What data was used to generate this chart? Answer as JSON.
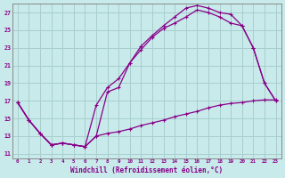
{
  "xlabel": "Windchill (Refroidissement éolien,°C)",
  "bg_color": "#c8eaea",
  "grid_color": "#a8cece",
  "line_color": "#880088",
  "xlim": [
    -0.5,
    23.5
  ],
  "ylim": [
    10.5,
    28.0
  ],
  "xticks": [
    0,
    1,
    2,
    3,
    4,
    5,
    6,
    7,
    8,
    9,
    10,
    11,
    12,
    13,
    14,
    15,
    16,
    17,
    18,
    19,
    20,
    21,
    22,
    23
  ],
  "yticks": [
    11,
    13,
    15,
    17,
    19,
    21,
    23,
    25,
    27
  ],
  "curve1_x": [
    0,
    1,
    2,
    3,
    4,
    5,
    6,
    7,
    8,
    9,
    10,
    11,
    12,
    13,
    14,
    15,
    16,
    17,
    18,
    19,
    20,
    21,
    22,
    23
  ],
  "curve1_y": [
    16.8,
    14.8,
    13.3,
    12.0,
    12.2,
    12.0,
    11.8,
    13.0,
    13.3,
    13.5,
    13.8,
    14.2,
    14.5,
    14.8,
    15.2,
    15.5,
    15.8,
    16.2,
    16.5,
    16.7,
    16.8,
    17.0,
    17.1,
    17.1
  ],
  "curve2_x": [
    0,
    1,
    2,
    3,
    4,
    5,
    6,
    7,
    8,
    9,
    10,
    11,
    12,
    13,
    14,
    15,
    16,
    17,
    18,
    19,
    20,
    21,
    22,
    23
  ],
  "curve2_y": [
    16.8,
    14.8,
    13.3,
    12.0,
    12.2,
    12.0,
    11.8,
    16.5,
    18.5,
    19.5,
    21.3,
    23.2,
    24.4,
    25.5,
    26.5,
    27.5,
    27.8,
    27.5,
    27.0,
    26.8,
    25.5,
    23.0,
    19.0,
    17.0
  ],
  "curve3_x": [
    0,
    1,
    2,
    3,
    4,
    5,
    6,
    7,
    8,
    9,
    10,
    11,
    12,
    13,
    14,
    15,
    16,
    17,
    18,
    19,
    20,
    21,
    22,
    23
  ],
  "curve3_y": [
    16.8,
    14.8,
    13.3,
    12.0,
    12.2,
    12.0,
    11.8,
    13.0,
    18.0,
    18.5,
    21.3,
    22.8,
    24.2,
    25.2,
    25.8,
    26.5,
    27.3,
    27.0,
    26.5,
    25.8,
    25.5,
    23.0,
    19.0,
    17.0
  ]
}
